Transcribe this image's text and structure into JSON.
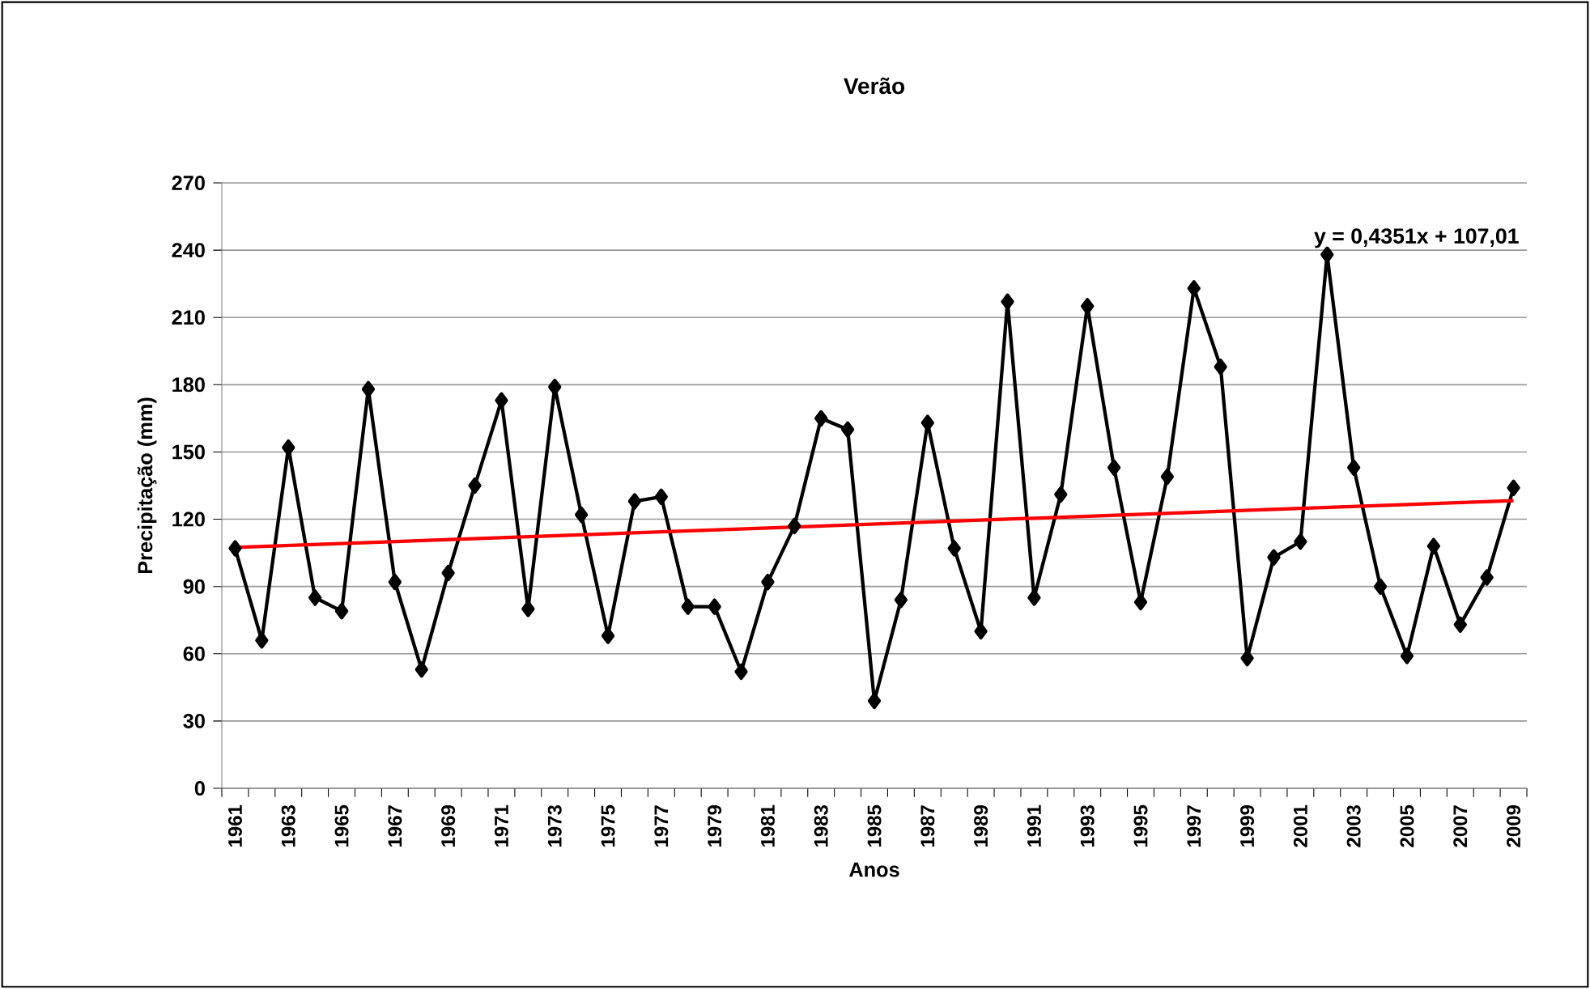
{
  "chart_data": {
    "type": "line",
    "title": "Verão",
    "xlabel": "Anos",
    "ylabel": "Precipitação (mm)",
    "categories": [
      "1961",
      null,
      "1963",
      null,
      "1965",
      null,
      "1967",
      null,
      "1969",
      null,
      "1971",
      null,
      "1973",
      null,
      "1975",
      null,
      "1977",
      null,
      "1979",
      null,
      "1981",
      null,
      "1983",
      null,
      "1985",
      null,
      "1987",
      null,
      "1989",
      null,
      "1991",
      null,
      "1993",
      null,
      "1995",
      null,
      "1997",
      null,
      "1999",
      null,
      "2001",
      null,
      "2003",
      null,
      "2005",
      null,
      "2007",
      null,
      "2009"
    ],
    "series": [
      {
        "color": "#000000",
        "values": [
          107,
          66,
          152,
          85,
          79,
          178,
          92,
          53,
          96,
          135,
          173,
          80,
          179,
          122,
          68,
          128,
          130,
          81,
          81,
          52,
          92,
          117,
          165,
          160,
          39,
          84,
          163,
          107,
          70,
          217,
          85,
          131,
          215,
          143,
          83,
          139,
          223,
          188,
          58,
          103,
          110,
          238,
          143,
          90,
          59,
          108,
          73,
          94,
          134
        ]
      },
      {
        "type": "line",
        "color": "#ff0000",
        "values": [
          107.4,
          null,
          null,
          null,
          null,
          null,
          null,
          null,
          null,
          null,
          null,
          null,
          null,
          null,
          null,
          null,
          null,
          null,
          null,
          null,
          null,
          null,
          null,
          null,
          null,
          null,
          null,
          null,
          null,
          null,
          null,
          null,
          null,
          null,
          null,
          null,
          null,
          null,
          null,
          null,
          null,
          null,
          null,
          null,
          null,
          null,
          null,
          null,
          128.3
        ],
        "marker": "none"
      }
    ],
    "ylim": [
      0,
      270
    ],
    "yticks": [
      0,
      30,
      60,
      90,
      120,
      150,
      180,
      210,
      240,
      270
    ],
    "grid": "y",
    "marker": "diamond",
    "line_style": "solid",
    "annotations": [
      "y = 0,4351x + 107,01"
    ]
  }
}
